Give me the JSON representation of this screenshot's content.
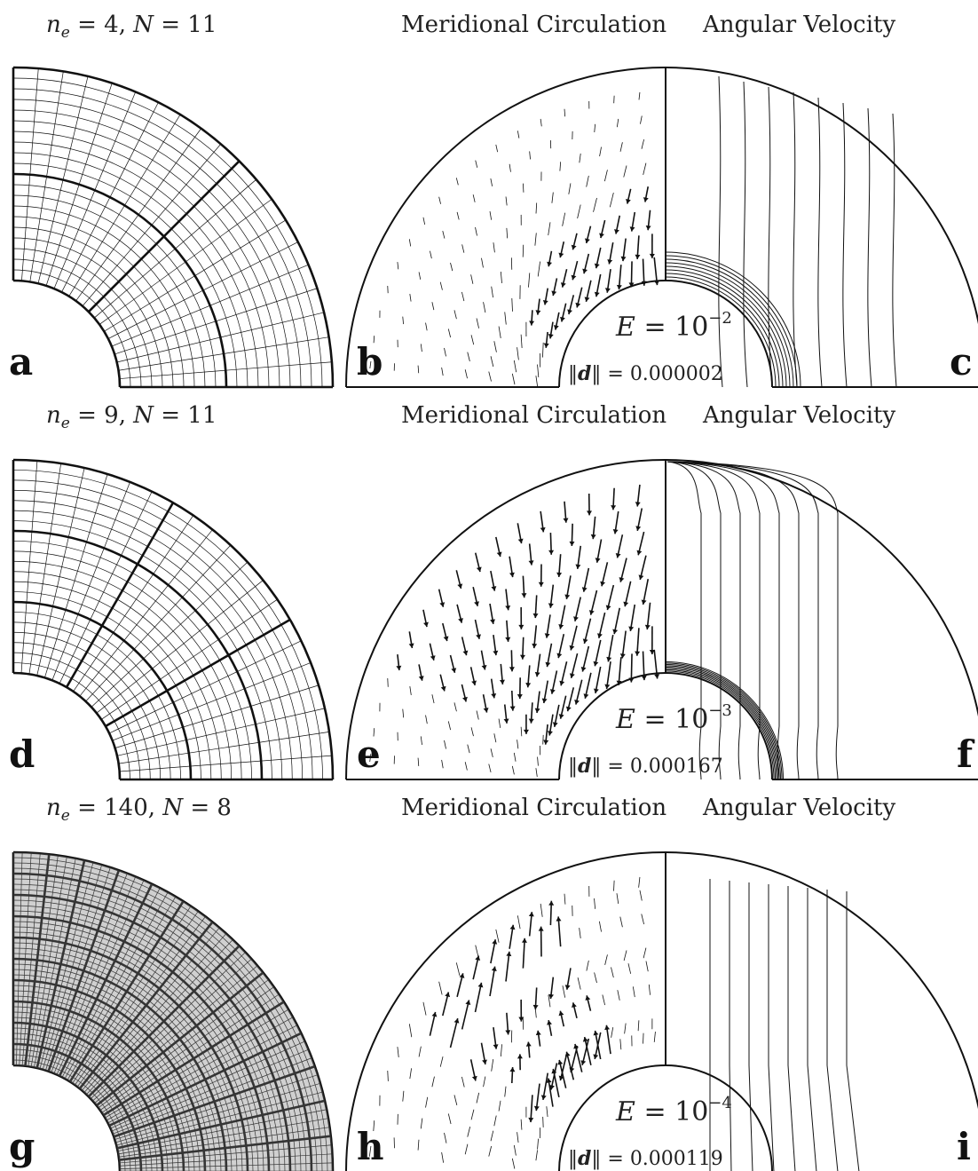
{
  "rows": [
    {
      "mesh_label": "n_e = 4, N = 11",
      "ne": 4,
      "N": 11,
      "title_left": "Meridional Circulation",
      "title_right": "Angular Velocity",
      "ekman": "E = 10^-2",
      "ekman_exp": "−2",
      "norm": "‖d‖ = 0.000002",
      "norm_value": "0.000002",
      "panels": [
        "a",
        "b",
        "c"
      ]
    },
    {
      "mesh_label": "n_e = 9, N = 11",
      "ne": 9,
      "N": 11,
      "title_left": "Meridional Circulation",
      "title_right": "Angular Velocity",
      "ekman": "E = 10^-3",
      "ekman_exp": "−3",
      "norm": "‖d‖ = 0.000167",
      "norm_value": "0.000167",
      "panels": [
        "d",
        "e",
        "f"
      ]
    },
    {
      "mesh_label": "n_e = 140, N = 8",
      "ne": 140,
      "N": 8,
      "title_left": "Meridional Circulation",
      "title_right": "Angular Velocity",
      "ekman": "E = 10^-4",
      "ekman_exp": "−4",
      "norm": "‖d‖ = 0.000119",
      "norm_value": "0.000119",
      "panels": [
        "g",
        "h",
        "i"
      ]
    }
  ]
}
